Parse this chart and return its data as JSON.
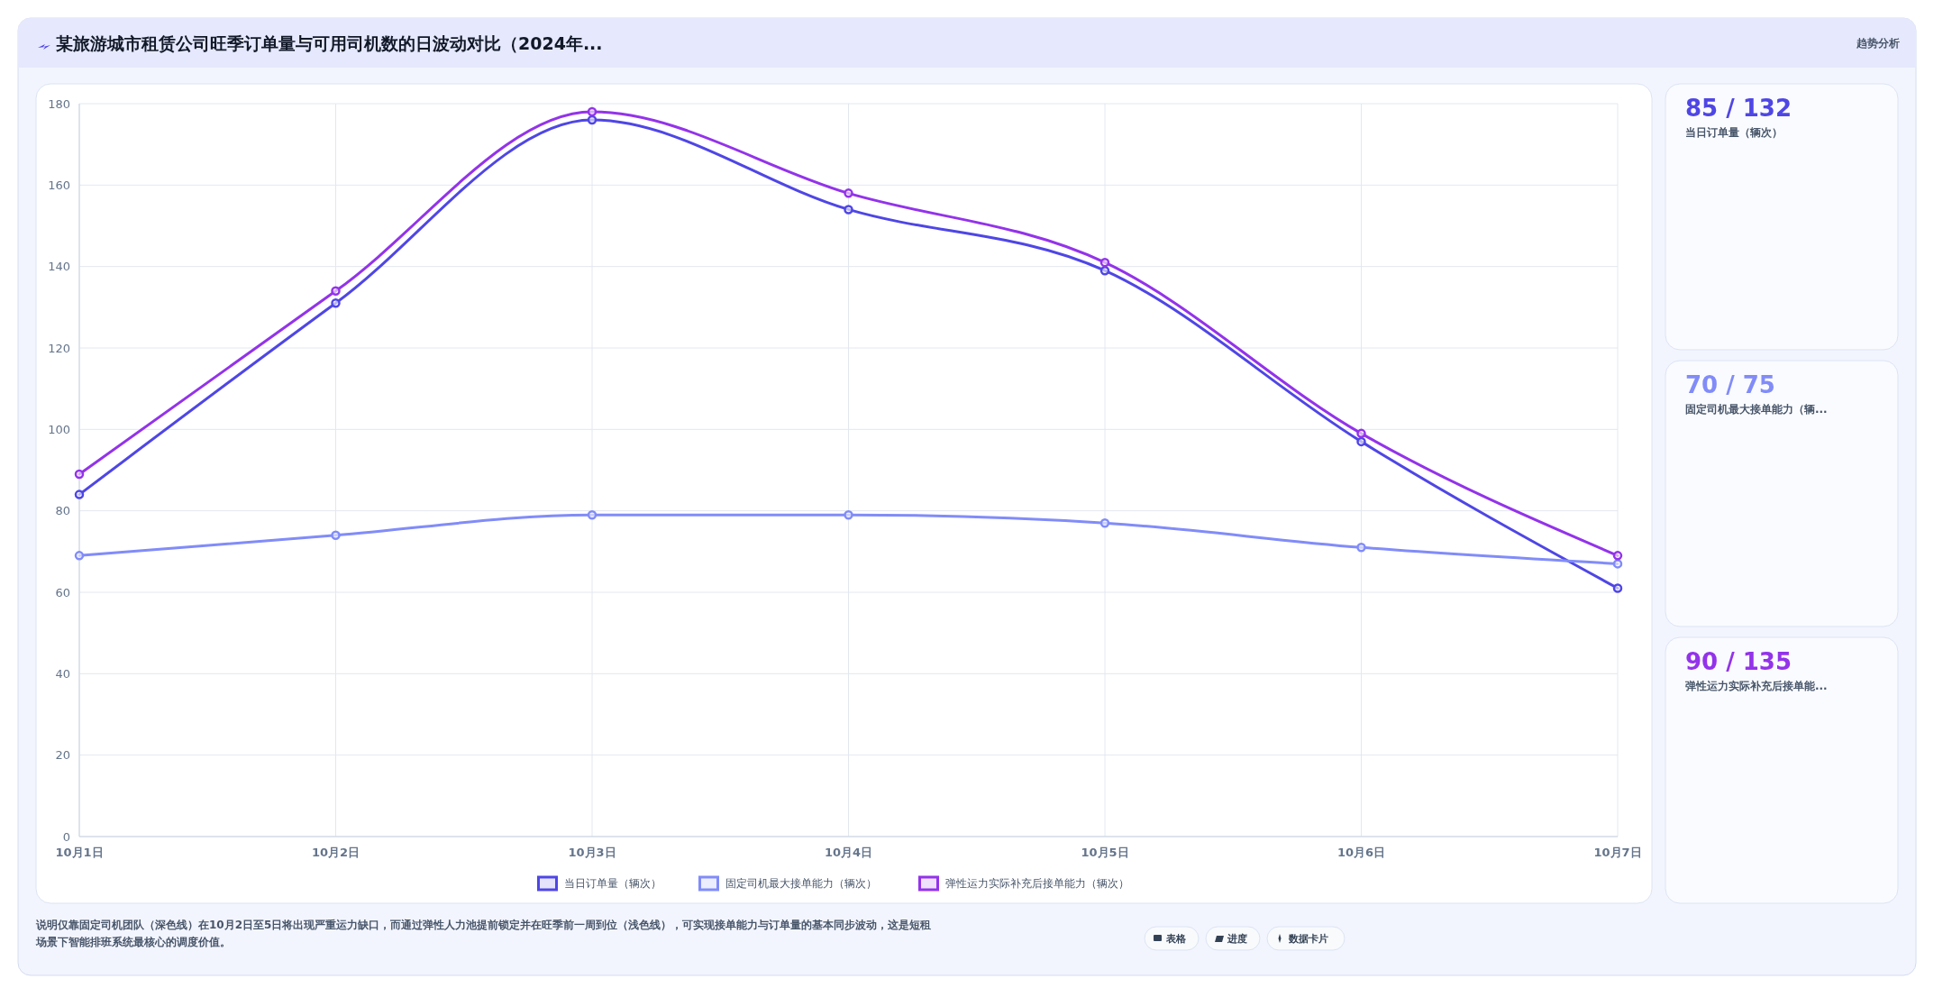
{
  "chart_data": [
    {
      "type": "line",
      "title": "某旅游城市租赁公司旺季订单量与可用司机数的日波动对比（2024年...",
      "categories": [
        "10月1日",
        "10月2日",
        "10月3日",
        "10月4日",
        "10月5日",
        "10月6日",
        "10月7日"
      ],
      "ylim": [
        0,
        180
      ],
      "yticks": [
        0,
        20,
        40,
        60,
        80,
        100,
        120,
        140,
        160,
        180
      ],
      "grid": true,
      "legend": "bottom",
      "marker": "circle",
      "line_style": "solid",
      "series": [
        {
          "name": "当日订单量（辆次）",
          "color": "#4f46e5",
          "values": [
            84,
            131,
            176,
            154,
            139,
            97,
            61
          ]
        },
        {
          "name": "固定司机最大接单能力（辆次）",
          "color": "#818cf8",
          "values": [
            69,
            74,
            79,
            79,
            77,
            71,
            67
          ]
        },
        {
          "name": "弹性运力实际补充后接单能力（辆次）",
          "color": "#9333ea",
          "values": [
            89,
            134,
            178,
            158,
            141,
            99,
            69
          ]
        }
      ],
      "annotations": [
        "趋势分析",
        "说明仅靠固定司机团队（深色线）在10月2日至5日将出现严重运力缺口，而通过弹性人力池提前锁定并在旺季前一周到位（浅色线），可实现接单能力与订单量的基本同步波动，这是短租场景下智能排班系统最核心的调度价值。",
        "表格",
        "进度",
        "数据卡片"
      ]
    },
    {
      "type": "other",
      "title": "85 / 132",
      "subtitle": "当日订单量（辆次）",
      "color": "#4f46e5"
    },
    {
      "type": "other",
      "title": "70 / 75",
      "subtitle": "固定司机最大接单能力（辆...",
      "color": "#818cf8"
    },
    {
      "type": "other",
      "title": "90 / 135",
      "subtitle": "弹性运力实际补充后接单能...",
      "color": "#9333ea"
    }
  ]
}
